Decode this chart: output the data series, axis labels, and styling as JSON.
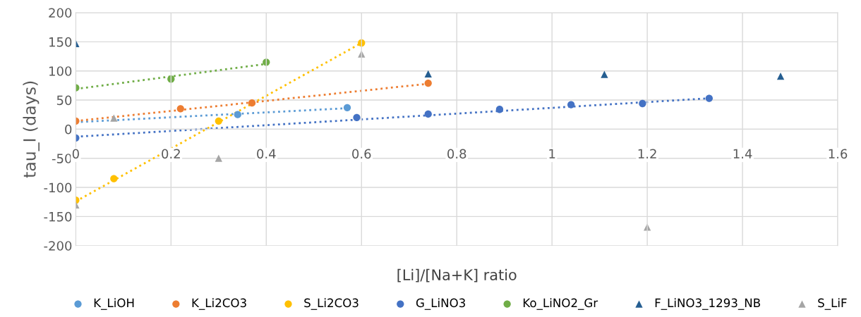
{
  "chart_data": {
    "type": "scatter",
    "xlabel": "[Li]/[Na+K] ratio",
    "ylabel": "tau_I (days)",
    "xlim": [
      0,
      1.6
    ],
    "xticks": [
      0,
      0.2,
      0.4,
      0.6,
      0.8,
      1,
      1.2,
      1.4,
      1.6
    ],
    "ylim": [
      -200,
      200
    ],
    "yticks": [
      -200,
      -150,
      -100,
      -50,
      0,
      50,
      100,
      150,
      200
    ],
    "grid": true,
    "legend": "bottom",
    "series": [
      {
        "name": "K_LiOH",
        "color": "#5b9bd5",
        "marker": "circle",
        "x": [
          0.34,
          0.57
        ],
        "values": [
          25,
          37
        ]
      },
      {
        "name": "K_Li2CO3",
        "color": "#ed7d31",
        "marker": "circle",
        "x": [
          0,
          0.22,
          0.37,
          0.74
        ],
        "values": [
          14,
          35,
          45,
          79
        ]
      },
      {
        "name": "S_Li2CO3",
        "color": "#ffc000",
        "marker": "circle",
        "x": [
          0,
          0.08,
          0.3,
          0.6
        ],
        "values": [
          -122,
          -85,
          14,
          148
        ]
      },
      {
        "name": "G_LiNO3",
        "color": "#4472c4",
        "marker": "circle",
        "x": [
          0,
          0.59,
          0.74,
          0.89,
          1.04,
          1.19,
          1.33
        ],
        "values": [
          -15,
          20,
          26,
          34,
          42,
          44,
          53
        ]
      },
      {
        "name": "Ko_LiNO2_Gr",
        "color": "#70ad47",
        "marker": "circle",
        "x": [
          0,
          0.2,
          0.4
        ],
        "values": [
          71,
          86,
          115
        ]
      },
      {
        "name": "F_LiNO3_1293_NB",
        "color": "#255e91",
        "marker": "triangle",
        "x": [
          0,
          0.74,
          1.11,
          1.48
        ],
        "values": [
          147,
          95,
          94,
          91
        ]
      },
      {
        "name": "S_LiF",
        "color": "#a5a5a5",
        "marker": "triangle",
        "x": [
          0,
          0.08,
          0.3,
          0.6,
          1.2
        ],
        "values": [
          -130,
          19,
          -50,
          129,
          -168
        ]
      },
      {
        "type": "line",
        "line_style": "dotted",
        "color": "#5b9bd5",
        "x": [
          0,
          0.57
        ],
        "values": [
          12,
          36
        ]
      },
      {
        "type": "line",
        "line_style": "dotted",
        "color": "#ed7d31",
        "x": [
          0,
          0.74
        ],
        "values": [
          14,
          78
        ]
      },
      {
        "type": "line",
        "line_style": "dotted",
        "color": "#ffc000",
        "x": [
          0,
          0.6
        ],
        "values": [
          -124,
          148
        ]
      },
      {
        "type": "line",
        "line_style": "dotted",
        "color": "#4472c4",
        "x": [
          0,
          1.33
        ],
        "values": [
          -13,
          53
        ]
      },
      {
        "type": "line",
        "line_style": "dotted",
        "color": "#70ad47",
        "x": [
          0,
          0.4
        ],
        "values": [
          69,
          112
        ]
      }
    ]
  }
}
